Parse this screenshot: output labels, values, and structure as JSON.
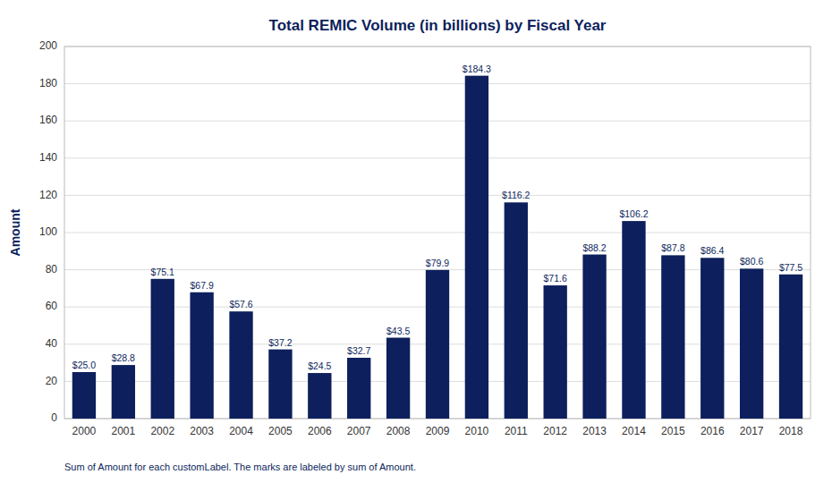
{
  "chart_data": {
    "type": "bar",
    "title": "Total REMIC Volume (in billions) by Fiscal Year",
    "y_label": "Amount",
    "categories": [
      "2000",
      "2001",
      "2002",
      "2003",
      "2004",
      "2005",
      "2006",
      "2007",
      "2008",
      "2009",
      "2010",
      "2011",
      "2012",
      "2013",
      "2014",
      "2015",
      "2016",
      "2017",
      "2018"
    ],
    "values": [
      25.0,
      28.8,
      75.1,
      67.9,
      57.6,
      37.2,
      24.5,
      32.7,
      43.5,
      79.9,
      184.3,
      116.2,
      71.6,
      88.2,
      106.2,
      87.8,
      86.4,
      80.6,
      77.5
    ],
    "value_labels": [
      "$25.0",
      "$28.8",
      "$75.1",
      "$67.9",
      "$57.6",
      "$37.2",
      "$24.5",
      "$32.7",
      "$43.5",
      "$79.9",
      "$184.3",
      "$116.2",
      "$71.6",
      "$88.2",
      "$106.2",
      "$87.8",
      "$86.4",
      "$80.6",
      "$77.5"
    ],
    "data_labels": true,
    "color": "#0D1F5C",
    "ylim": [
      0,
      200
    ],
    "yticks": [
      0,
      20,
      40,
      60,
      80,
      100,
      120,
      140,
      160,
      180,
      200
    ],
    "grid": true,
    "annotations": [
      "Sum of Amount for each customLabel.  The marks are labeled by sum of Amount."
    ]
  }
}
